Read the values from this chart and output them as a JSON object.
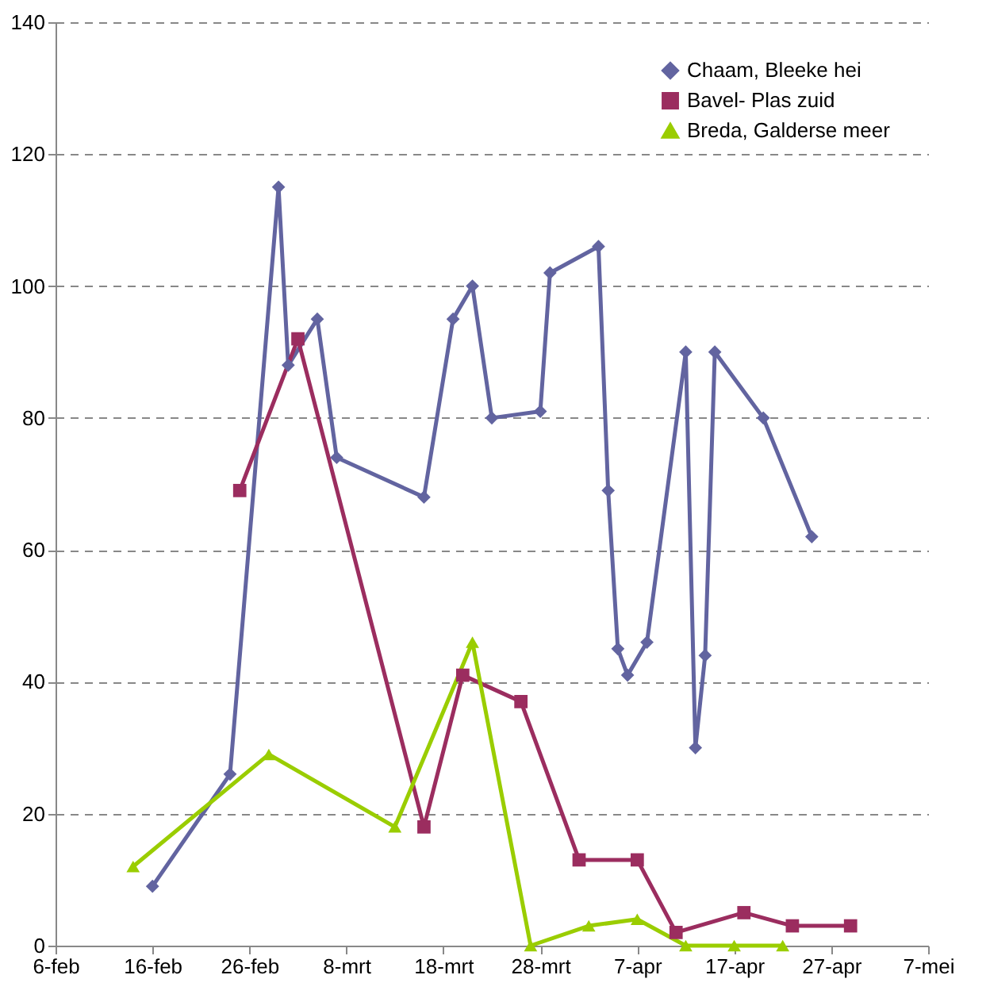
{
  "chart_data": {
    "type": "line",
    "xlim": [
      "--02-06",
      "--05-07"
    ],
    "xticks": [
      {
        "value": "--02-06",
        "label": "6-feb"
      },
      {
        "value": "--02-16",
        "label": "16-feb"
      },
      {
        "value": "--02-26",
        "label": "26-feb"
      },
      {
        "value": "--03-08",
        "label": "8-mrt"
      },
      {
        "value": "--03-18",
        "label": "18-mrt"
      },
      {
        "value": "--03-28",
        "label": "28-mrt"
      },
      {
        "value": "--04-07",
        "label": "7-apr"
      },
      {
        "value": "--04-17",
        "label": "17-apr"
      },
      {
        "value": "--04-27",
        "label": "27-apr"
      },
      {
        "value": "--05-07",
        "label": "7-mei"
      }
    ],
    "ylim": [
      0,
      140
    ],
    "yticks": [
      0,
      20,
      40,
      60,
      80,
      100,
      120,
      140
    ],
    "grid": "y",
    "legend": "top right",
    "series": [
      {
        "name": "Chaam, Bleeke hei",
        "color": "#6264a0",
        "marker": "diamond",
        "x": [
          "--02-16",
          "--02-24",
          "--03-01",
          "--03-02",
          "--03-05",
          "--03-07",
          "--03-16",
          "--03-19",
          "--03-21",
          "--03-23",
          "--03-28",
          "--03-29",
          "--04-03",
          "--04-04",
          "--04-05",
          "--04-06",
          "--04-08",
          "--04-12",
          "--04-13",
          "--04-14",
          "--04-15",
          "--04-20",
          "--04-25"
        ],
        "values": [
          9,
          26,
          115,
          88,
          95,
          74,
          68,
          95,
          100,
          80,
          81,
          102,
          106,
          69,
          45,
          41,
          46,
          90,
          30,
          44,
          90,
          80,
          62
        ]
      },
      {
        "name": "Bavel- Plas zuid",
        "color": "#9b2d5f",
        "marker": "square",
        "x": [
          "--02-25",
          "--03-03",
          "--03-16",
          "--03-20",
          "--03-26",
          "--04-01",
          "--04-07",
          "--04-11",
          "--04-18",
          "--04-23",
          "--04-29"
        ],
        "values": [
          69,
          92,
          18,
          41,
          37,
          13,
          13,
          2,
          5,
          3,
          3
        ]
      },
      {
        "name": "Breda, Galderse meer",
        "color": "#9acd00",
        "marker": "triangle",
        "x": [
          "--02-14",
          "--02-28",
          "--03-13",
          "--03-21",
          "--03-27",
          "--04-02",
          "--04-07",
          "--04-12",
          "--04-17",
          "--04-22"
        ],
        "values": [
          12,
          29,
          18,
          46,
          0,
          3,
          4,
          0,
          0,
          0
        ]
      }
    ]
  }
}
